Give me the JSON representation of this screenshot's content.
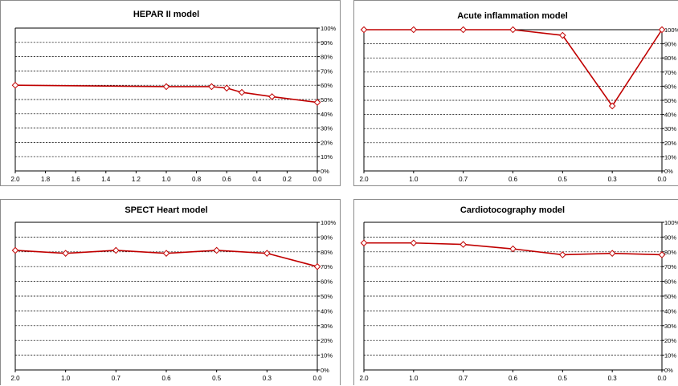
{
  "chart_data": [
    {
      "type": "line",
      "title": "HEPAR II model",
      "x": [
        2.0,
        1.0,
        0.7,
        0.6,
        0.5,
        0.3,
        0.0
      ],
      "x_tick_labels": [
        "2.0",
        "1.8",
        "1.6",
        "1.4",
        "1.2",
        "1.0",
        "0.8",
        "0.6",
        "0.4",
        "0.2",
        "0.0"
      ],
      "x_scale": "linear-reversed",
      "xlim": [
        2.0,
        0.0
      ],
      "y_tick_labels": [
        "0%",
        "10%",
        "20%",
        "30%",
        "40%",
        "50%",
        "60%",
        "70%",
        "80%",
        "90%",
        "100%"
      ],
      "ylim": [
        0,
        100
      ],
      "grid": true,
      "series": [
        {
          "values": [
            60,
            59,
            59,
            58,
            55,
            52,
            48
          ],
          "color": "#c00000"
        }
      ]
    },
    {
      "type": "line",
      "title": "Acute inflammation model",
      "x": [
        2.0,
        1.0,
        0.7,
        0.6,
        0.5,
        0.3,
        0.0
      ],
      "x_tick_labels": [
        "2.0",
        "1.0",
        "0.7",
        "0.6",
        "0.5",
        "0.3",
        "0.0"
      ],
      "x_scale": "categorical",
      "y_tick_labels": [
        "0%",
        "10%",
        "20%",
        "30%",
        "40%",
        "50%",
        "60%",
        "70%",
        "80%",
        "90%",
        "100%"
      ],
      "ylim": [
        0,
        100
      ],
      "grid": true,
      "series": [
        {
          "values": [
            100,
            100,
            100,
            100,
            96,
            46,
            100
          ],
          "color": "#c00000"
        }
      ]
    },
    {
      "type": "line",
      "title": "SPECT Heart model",
      "x": [
        2.0,
        1.0,
        0.7,
        0.6,
        0.5,
        0.3,
        0.0
      ],
      "x_tick_labels": [
        "2.0",
        "1.0",
        "0.7",
        "0.6",
        "0.5",
        "0.3",
        "0.0"
      ],
      "x_scale": "categorical",
      "y_tick_labels": [
        "0%",
        "10%",
        "20%",
        "30%",
        "40%",
        "50%",
        "60%",
        "70%",
        "80%",
        "90%",
        "100%"
      ],
      "ylim": [
        0,
        100
      ],
      "grid": true,
      "series": [
        {
          "values": [
            81,
            79,
            81,
            79,
            81,
            79,
            70
          ],
          "color": "#c00000"
        }
      ]
    },
    {
      "type": "line",
      "title": "Cardiotocography model",
      "x": [
        2.0,
        1.0,
        0.7,
        0.6,
        0.5,
        0.3,
        0.0
      ],
      "x_tick_labels": [
        "2.0",
        "1.0",
        "0.7",
        "0.6",
        "0.5",
        "0.3",
        "0.0"
      ],
      "x_scale": "categorical",
      "y_tick_labels": [
        "0%",
        "10%",
        "20%",
        "30%",
        "40%",
        "50%",
        "60%",
        "70%",
        "80%",
        "90%",
        "100%"
      ],
      "ylim": [
        0,
        100
      ],
      "grid": true,
      "series": [
        {
          "values": [
            86,
            86,
            85,
            82,
            78,
            79,
            78
          ],
          "color": "#c00000"
        }
      ]
    }
  ]
}
